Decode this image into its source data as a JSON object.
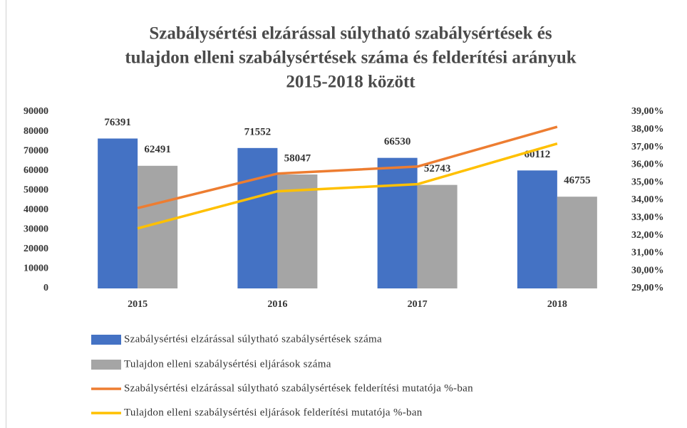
{
  "chart_data": {
    "type": "bar",
    "title": [
      "Szabálysértési elzárással súlytható szabálysértések és",
      "tulajdon elleni szabálysértések száma és felderítési arányuk",
      "2015-2018 között"
    ],
    "categories": [
      "2015",
      "2016",
      "2017",
      "2018"
    ],
    "series": [
      {
        "name": "Szabálysértési elzárással súlytható szabálysértések száma",
        "type": "bar",
        "color": "#4472c4",
        "values": [
          76391,
          71552,
          66530,
          60112
        ]
      },
      {
        "name": "Tulajdon elleni szabálysértési eljárások száma",
        "type": "bar",
        "color": "#a5a5a5",
        "values": [
          62491,
          58047,
          52743,
          46755
        ]
      },
      {
        "name": "Szabálysértési elzárással súlytható szabálysértések felderítési mutatója %-ban",
        "type": "line",
        "axis": "y2",
        "color": "#ed7d31",
        "values": [
          33.55,
          35.5,
          35.9,
          38.15
        ]
      },
      {
        "name": "Tulajdon elleni szabálysértési eljárások felderítési mutatója %-ban",
        "type": "line",
        "axis": "y2",
        "color": "#ffc000",
        "values": [
          32.4,
          34.5,
          34.9,
          37.2
        ]
      }
    ],
    "ylim": [
      0,
      90000
    ],
    "yticks": [
      0,
      10000,
      20000,
      30000,
      40000,
      50000,
      60000,
      70000,
      80000,
      90000
    ],
    "y2lim": [
      29,
      39
    ],
    "y2ticks": [
      {
        "value": 29,
        "label": "29,00%"
      },
      {
        "value": 30,
        "label": "30,00%"
      },
      {
        "value": 31,
        "label": "31,00%"
      },
      {
        "value": 32,
        "label": "32,00%"
      },
      {
        "value": 33,
        "label": "33,00%"
      },
      {
        "value": 34,
        "label": "34,00%"
      },
      {
        "value": 35,
        "label": "35,00%"
      },
      {
        "value": 36,
        "label": "36,00%"
      },
      {
        "value": 37,
        "label": "37,00%"
      },
      {
        "value": 38,
        "label": "38,00%"
      },
      {
        "value": 39,
        "label": "39,00%"
      }
    ],
    "legend": "bottom"
  }
}
